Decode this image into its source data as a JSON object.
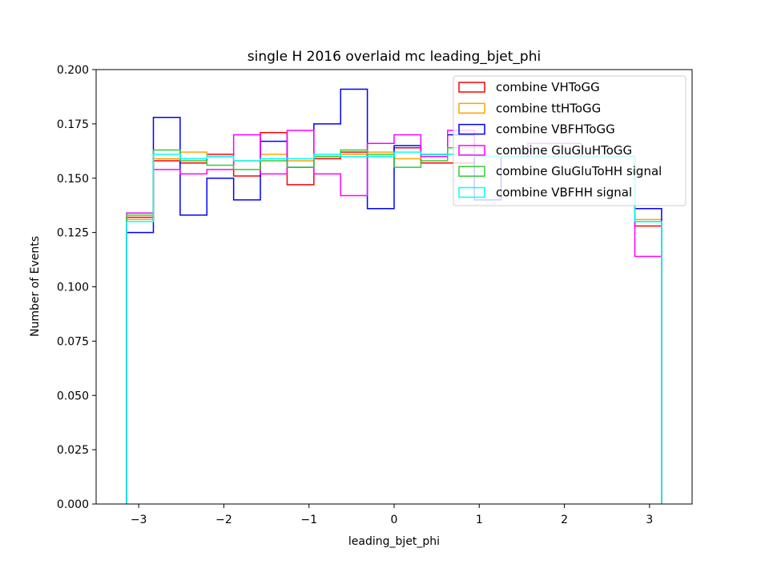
{
  "chart_data": {
    "type": "histogram-step",
    "title": "single H 2016 overlaid mc leading_bjet_phi",
    "xlabel": "leading_bjet_phi",
    "ylabel": "Number of Events",
    "xlim": [
      -3.5,
      3.5
    ],
    "ylim": [
      0.0,
      0.2
    ],
    "xticks": [
      -3,
      -2,
      -1,
      0,
      1,
      2,
      3
    ],
    "xtick_labels": [
      "−3",
      "−2",
      "−1",
      "0",
      "1",
      "2",
      "3"
    ],
    "yticks": [
      0.0,
      0.025,
      0.05,
      0.075,
      0.1,
      0.125,
      0.15,
      0.175,
      0.2
    ],
    "ytick_labels": [
      "0.000",
      "0.025",
      "0.050",
      "0.075",
      "0.100",
      "0.125",
      "0.150",
      "0.175",
      "0.200"
    ],
    "legend_position": "top-right",
    "bin_edges": [
      -3.1416,
      -2.8274,
      -2.5133,
      -2.1991,
      -1.885,
      -1.5708,
      -1.2566,
      -0.9425,
      -0.6283,
      -0.3142,
      0.0,
      0.3142,
      0.6283,
      0.9425,
      1.2566,
      1.5708,
      1.885,
      2.1991,
      2.5133,
      2.8274,
      3.1416
    ],
    "series": [
      {
        "name": "combine VHToGG",
        "color": "#ff0000",
        "values": [
          0.132,
          0.158,
          0.157,
          0.161,
          0.151,
          0.171,
          0.147,
          0.159,
          0.162,
          0.16,
          0.164,
          0.157,
          0.157,
          0.16,
          0.16,
          0.16,
          0.16,
          0.16,
          0.16,
          0.128
        ]
      },
      {
        "name": "combine ttHToGG",
        "color": "#ffa500",
        "values": [
          0.131,
          0.159,
          0.162,
          0.16,
          0.158,
          0.161,
          0.158,
          0.16,
          0.161,
          0.162,
          0.159,
          0.161,
          0.161,
          0.16,
          0.16,
          0.16,
          0.16,
          0.16,
          0.16,
          0.131
        ]
      },
      {
        "name": "combine VBFHToGG",
        "color": "#0000ff",
        "values": [
          0.125,
          0.178,
          0.133,
          0.15,
          0.14,
          0.167,
          0.155,
          0.175,
          0.191,
          0.136,
          0.165,
          0.161,
          0.17,
          0.14,
          0.16,
          0.16,
          0.16,
          0.16,
          0.16,
          0.136
        ]
      },
      {
        "name": "combine GluGluHToGG",
        "color": "#ff00ff",
        "values": [
          0.134,
          0.154,
          0.152,
          0.154,
          0.17,
          0.152,
          0.172,
          0.152,
          0.142,
          0.166,
          0.17,
          0.16,
          0.172,
          0.16,
          0.16,
          0.166,
          0.166,
          0.16,
          0.16,
          0.114
        ]
      },
      {
        "name": "combine GluGluToHH signal",
        "color": "#33cc33",
        "values": [
          0.133,
          0.163,
          0.158,
          0.156,
          0.154,
          0.158,
          0.155,
          0.16,
          0.163,
          0.161,
          0.155,
          0.158,
          0.164,
          0.16,
          0.16,
          0.16,
          0.16,
          0.16,
          0.16,
          0.13
        ]
      },
      {
        "name": "combine VBFHH signal",
        "color": "#00ffff",
        "values": [
          0.13,
          0.161,
          0.159,
          0.16,
          0.158,
          0.159,
          0.159,
          0.161,
          0.16,
          0.16,
          0.162,
          0.161,
          0.161,
          0.16,
          0.16,
          0.16,
          0.16,
          0.16,
          0.16,
          0.13
        ]
      }
    ]
  }
}
